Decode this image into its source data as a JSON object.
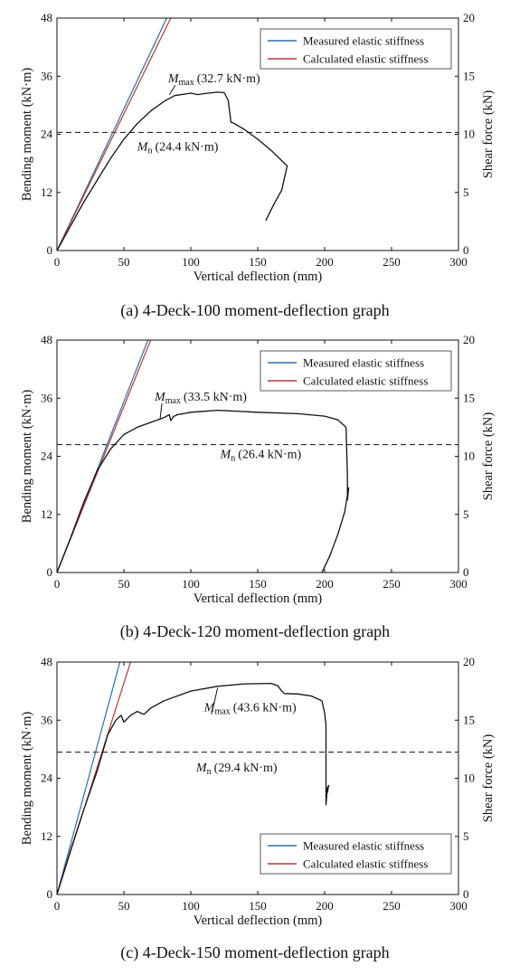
{
  "chart_data": [
    {
      "type": "line",
      "caption": "(a) 4-Deck-100 moment-deflection graph",
      "xlabel": "Vertical deflection (mm)",
      "ylabel": "Bending moment (kN·m)",
      "y2label": "Shear force (kN)",
      "xlim": [
        0,
        300
      ],
      "ylim": [
        0,
        48
      ],
      "y2lim": [
        0,
        20
      ],
      "xticks": [
        0,
        50,
        100,
        150,
        200,
        250,
        300
      ],
      "yticks": [
        0,
        12,
        24,
        36,
        48
      ],
      "y2ticks": [
        0,
        5,
        10,
        15,
        20
      ],
      "legend": {
        "position": "top-right",
        "entries": [
          "Measured elastic stiffness",
          "Calculated elastic stiffness"
        ]
      },
      "series": [
        {
          "name": "Measured elastic stiffness",
          "color": "#2e6ea6",
          "x": [
            0,
            82
          ],
          "y": [
            0,
            48
          ]
        },
        {
          "name": "Calculated elastic stiffness",
          "color": "#b03a3a",
          "x": [
            0,
            85
          ],
          "y": [
            0,
            48
          ]
        },
        {
          "color": "#111111",
          "x": [
            0,
            10,
            20,
            30,
            40,
            50,
            60,
            70,
            80,
            88,
            95,
            100,
            105,
            110,
            120,
            125,
            128,
            130,
            132,
            140,
            150,
            160,
            170,
            172,
            168,
            162,
            156
          ],
          "y": [
            0,
            5,
            10,
            14.5,
            19,
            23,
            26.2,
            28.8,
            30.8,
            32,
            32.3,
            32.5,
            32.2,
            32.4,
            32.7,
            32.6,
            31,
            26.5,
            26.3,
            25,
            23,
            20.7,
            18,
            17.5,
            12.5,
            9.5,
            6.2
          ]
        }
      ],
      "reference_line": {
        "y": 24.4,
        "style": "dashed"
      },
      "annotations": [
        {
          "sym": "M",
          "sub": "max",
          "value": "(32.7 kN·m)",
          "x": 83,
          "y": 34.7,
          "arrow_to": [
            84,
            32.2
          ]
        },
        {
          "sym": "M",
          "sub": "n",
          "value": "(24.4 kN·m)",
          "x": 60,
          "y": 20.6
        }
      ]
    },
    {
      "type": "line",
      "caption": "(b) 4-Deck-120 moment-deflection graph",
      "xlabel": "Vertical deflection (mm)",
      "ylabel": "Bending moment (kN·m)",
      "y2label": "Shear force (kN)",
      "xlim": [
        0,
        300
      ],
      "ylim": [
        0,
        48
      ],
      "y2lim": [
        0,
        20
      ],
      "xticks": [
        0,
        50,
        100,
        150,
        200,
        250,
        300
      ],
      "yticks": [
        0,
        12,
        24,
        36,
        48
      ],
      "y2ticks": [
        0,
        5,
        10,
        15,
        20
      ],
      "legend": {
        "position": "top-right",
        "entries": [
          "Measured elastic stiffness",
          "Calculated elastic stiffness"
        ]
      },
      "series": [
        {
          "name": "Measured elastic stiffness",
          "color": "#2e6ea6",
          "x": [
            0,
            68
          ],
          "y": [
            0,
            48
          ]
        },
        {
          "name": "Calculated elastic stiffness",
          "color": "#b03a3a",
          "x": [
            0,
            70
          ],
          "y": [
            0,
            48
          ]
        },
        {
          "color": "#111111",
          "x": [
            0,
            10,
            20,
            30,
            40,
            50,
            60,
            70,
            80,
            84,
            85,
            87,
            90,
            100,
            110,
            120,
            150,
            180,
            200,
            210,
            216,
            217,
            217,
            218,
            215,
            210,
            204,
            198
          ],
          "y": [
            0,
            7,
            14.5,
            21,
            25.5,
            28.5,
            30,
            31,
            32,
            32.6,
            31.4,
            32.2,
            32.6,
            33.1,
            33.3,
            33.5,
            33.1,
            32.8,
            32.3,
            31.5,
            30,
            20,
            15,
            17.5,
            12.5,
            8,
            3.5,
            0
          ]
        }
      ],
      "reference_line": {
        "y": 26.4,
        "style": "dashed"
      },
      "annotations": [
        {
          "sym": "M",
          "sub": "max",
          "value": "(33.5 kN·m)",
          "x": 73,
          "y": 35.5,
          "arrow_to": [
            77,
            31.5
          ]
        },
        {
          "sym": "M",
          "sub": "n",
          "value": "(26.4 kN·m)",
          "x": 122,
          "y": 23.6
        }
      ]
    },
    {
      "type": "line",
      "caption": "(c) 4-Deck-150 moment-deflection graph",
      "xlabel": "Vertical deflection (mm)",
      "ylabel": "Bending moment (kN·m)",
      "y2label": "Shear force (kN)",
      "xlim": [
        0,
        300
      ],
      "ylim": [
        0,
        48
      ],
      "y2lim": [
        0,
        20
      ],
      "xticks": [
        0,
        50,
        100,
        150,
        200,
        250,
        300
      ],
      "yticks": [
        0,
        12,
        24,
        36,
        48
      ],
      "y2ticks": [
        0,
        5,
        10,
        15,
        20
      ],
      "legend": {
        "position": "bottom-right",
        "entries": [
          "Measured elastic stiffness",
          "Calculated elastic stiffness"
        ]
      },
      "series": [
        {
          "name": "Measured elastic stiffness",
          "color": "#2e6ea6",
          "x": [
            0,
            47
          ],
          "y": [
            0,
            48
          ]
        },
        {
          "name": "Calculated elastic stiffness",
          "color": "#b03a3a",
          "x": [
            0,
            55
          ],
          "y": [
            0,
            48
          ]
        },
        {
          "color": "#111111",
          "x": [
            0,
            10,
            20,
            30,
            38,
            44,
            48,
            50,
            55,
            60,
            65,
            70,
            80,
            100,
            120,
            140,
            160,
            165,
            168,
            170,
            180,
            190,
            198,
            200,
            201,
            201,
            202,
            203,
            202
          ],
          "y": [
            0,
            9,
            17.5,
            25.5,
            33,
            36,
            37,
            35.6,
            37,
            37.8,
            37.2,
            38.5,
            40,
            42,
            43,
            43.5,
            43.6,
            43.1,
            42,
            41.5,
            41.4,
            41,
            40,
            37.5,
            35,
            18.5,
            22,
            22.5,
            21
          ]
        }
      ],
      "reference_line": {
        "y": 29.4,
        "style": "dashed"
      },
      "annotations": [
        {
          "sym": "M",
          "sub": "max",
          "value": "(43.6 kN·m)",
          "x": 110,
          "y": 37.8,
          "arrow_to": [
            120,
            42.6
          ]
        },
        {
          "sym": "M",
          "sub": "n",
          "value": "(29.4 kN·m)",
          "x": 104,
          "y": 25.4
        }
      ]
    }
  ]
}
